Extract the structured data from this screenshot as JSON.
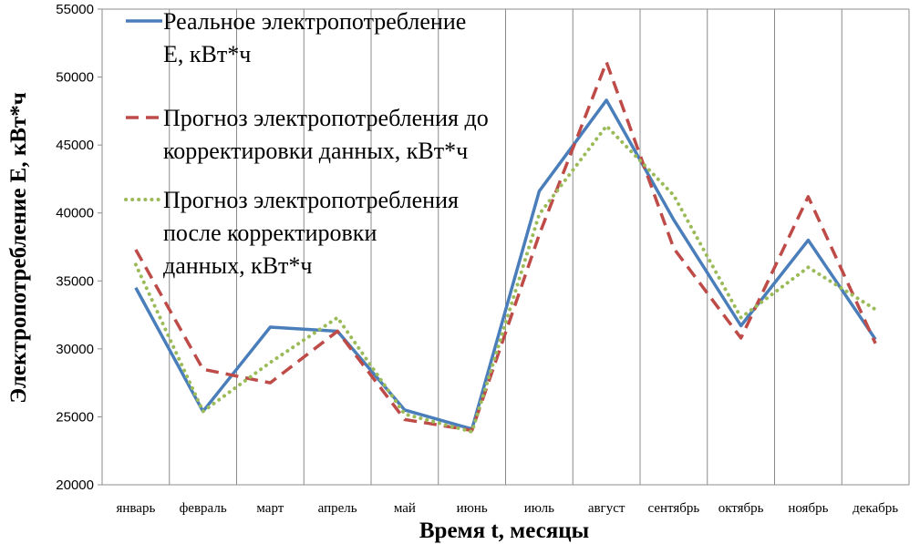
{
  "chart_data": {
    "type": "line",
    "xlabel": "Время t, месяцы",
    "ylabel": "Электропотребление  Е,  кВт*ч",
    "categories": [
      "январь",
      "февраль",
      "март",
      "апрель",
      "май",
      "июнь",
      "июль",
      "август",
      "сентябрь",
      "октябрь",
      "ноябрь",
      "декабрь"
    ],
    "ylim": [
      20000,
      55000
    ],
    "yticks": [
      20000,
      25000,
      30000,
      35000,
      40000,
      45000,
      50000,
      55000
    ],
    "grid": "vertical",
    "legend_position": "top-left",
    "series": [
      {
        "name": [
          "Реальное электропотребление",
          "Е, кВт*ч"
        ],
        "style": "solid",
        "color": "#4a7ebb",
        "values": [
          34500,
          25400,
          31600,
          31300,
          25500,
          24100,
          41600,
          48300,
          39500,
          31700,
          38000,
          30700
        ]
      },
      {
        "name": [
          "Прогноз электропотребления до",
          "корректировки данных, кВт*ч"
        ],
        "style": "dashed",
        "color": "#be4b48",
        "values": [
          37300,
          28500,
          27500,
          31300,
          24800,
          24000,
          38400,
          51100,
          37400,
          30800,
          41200,
          30400
        ]
      },
      {
        "name": [
          "Прогноз электропотребления",
          "после корректировки",
          "данных, кВт*ч"
        ],
        "style": "dotted",
        "color": "#9bbb59",
        "values": [
          36200,
          25400,
          29000,
          32300,
          25200,
          23900,
          39900,
          46400,
          41300,
          32300,
          36000,
          32900
        ]
      }
    ]
  }
}
